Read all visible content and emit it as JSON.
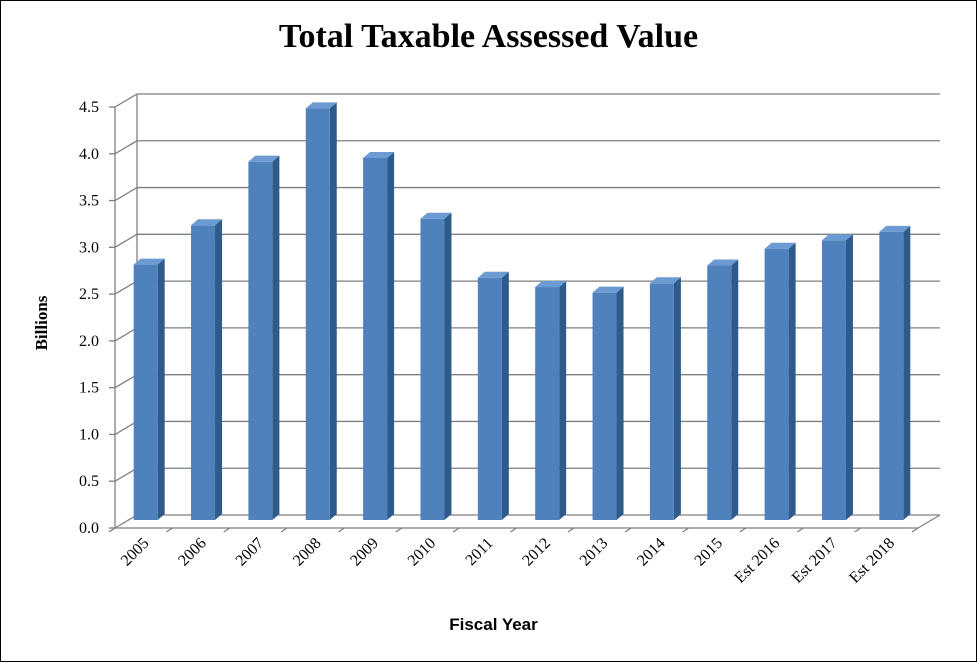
{
  "chart_data": {
    "type": "bar",
    "title": "Total Taxable Assessed Value",
    "xlabel": "Fiscal Year",
    "ylabel": "Billions",
    "categories": [
      "2005",
      "2006",
      "2007",
      "2008",
      "2009",
      "2010",
      "2011",
      "2012",
      "2013",
      "2014",
      "2015",
      "Est 2016",
      "Est 2017",
      "Est 2018"
    ],
    "values": [
      2.73,
      3.15,
      3.83,
      4.4,
      3.87,
      3.22,
      2.59,
      2.49,
      2.43,
      2.53,
      2.72,
      2.9,
      2.99,
      3.08
    ],
    "ylim": [
      0,
      4.5
    ],
    "yticks": [
      "0.0",
      "0.5",
      "1.0",
      "1.5",
      "2.0",
      "2.5",
      "3.0",
      "3.5",
      "4.0",
      "4.5"
    ],
    "grid": true,
    "legend": "none",
    "style": "3d-column",
    "colors": {
      "bar_front": "#4f81bd",
      "bar_side": "#2e5a8c",
      "bar_top": "#6b9bd2",
      "grid": "#7f7f7f"
    }
  }
}
